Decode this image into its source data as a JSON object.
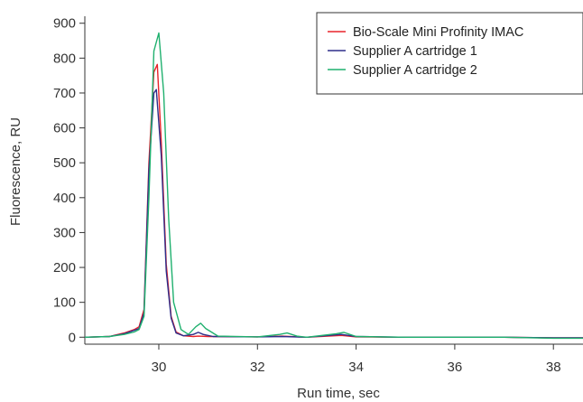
{
  "chart_data": {
    "type": "line",
    "title": "",
    "xlabel": "Run time, sec",
    "ylabel": "Fluorescence, RU",
    "xlim": [
      28.5,
      38.6
    ],
    "ylim": [
      -20,
      920
    ],
    "xticks": [
      30,
      32,
      34,
      36,
      38
    ],
    "yticks": [
      0,
      100,
      200,
      300,
      400,
      500,
      600,
      700,
      800,
      900
    ],
    "grid": false,
    "legend": "top-right",
    "series": [
      {
        "name": "Bio-Scale Mini Profinity IMAC",
        "color": "#e8232a",
        "x": [
          28.5,
          29.0,
          29.3,
          29.5,
          29.6,
          29.7,
          29.8,
          29.9,
          29.97,
          30.05,
          30.15,
          30.25,
          30.35,
          30.5,
          30.7,
          30.8,
          31.0,
          32.0,
          32.5,
          33.0,
          33.7,
          34.0,
          35.0,
          36.0,
          37.0,
          38.0,
          38.6
        ],
        "y": [
          0,
          2,
          12,
          22,
          30,
          80,
          500,
          760,
          782,
          560,
          210,
          60,
          15,
          4,
          2,
          3,
          2,
          1,
          3,
          0,
          5,
          1,
          0,
          0,
          0,
          -2,
          -2
        ]
      },
      {
        "name": "Supplier A cartridge 1",
        "color": "#2e2e8a",
        "x": [
          28.5,
          29.0,
          29.3,
          29.5,
          29.6,
          29.7,
          29.8,
          29.9,
          29.95,
          30.05,
          30.15,
          30.25,
          30.35,
          30.5,
          30.7,
          30.8,
          30.9,
          31.1,
          32.0,
          32.5,
          33.0,
          33.7,
          34.0,
          35.0,
          36.0,
          37.0,
          38.0,
          38.6
        ],
        "y": [
          0,
          2,
          10,
          20,
          25,
          70,
          480,
          700,
          710,
          520,
          190,
          55,
          12,
          4,
          8,
          14,
          8,
          2,
          1,
          2,
          0,
          8,
          2,
          0,
          0,
          0,
          -2,
          -2
        ]
      },
      {
        "name": "Supplier A cartridge 2",
        "color": "#1fb06e",
        "x": [
          28.5,
          29.0,
          29.3,
          29.5,
          29.6,
          29.7,
          29.8,
          29.9,
          30.0,
          30.1,
          30.2,
          30.3,
          30.45,
          30.6,
          30.75,
          30.85,
          30.95,
          31.2,
          32.0,
          32.45,
          32.6,
          32.8,
          33.0,
          33.6,
          33.75,
          34.0,
          35.0,
          36.0,
          37.0,
          38.0,
          38.6
        ],
        "y": [
          0,
          2,
          8,
          15,
          22,
          60,
          400,
          820,
          872,
          700,
          340,
          100,
          22,
          8,
          30,
          40,
          25,
          3,
          1,
          8,
          12,
          3,
          0,
          10,
          14,
          2,
          0,
          0,
          0,
          -3,
          -3
        ]
      }
    ]
  }
}
